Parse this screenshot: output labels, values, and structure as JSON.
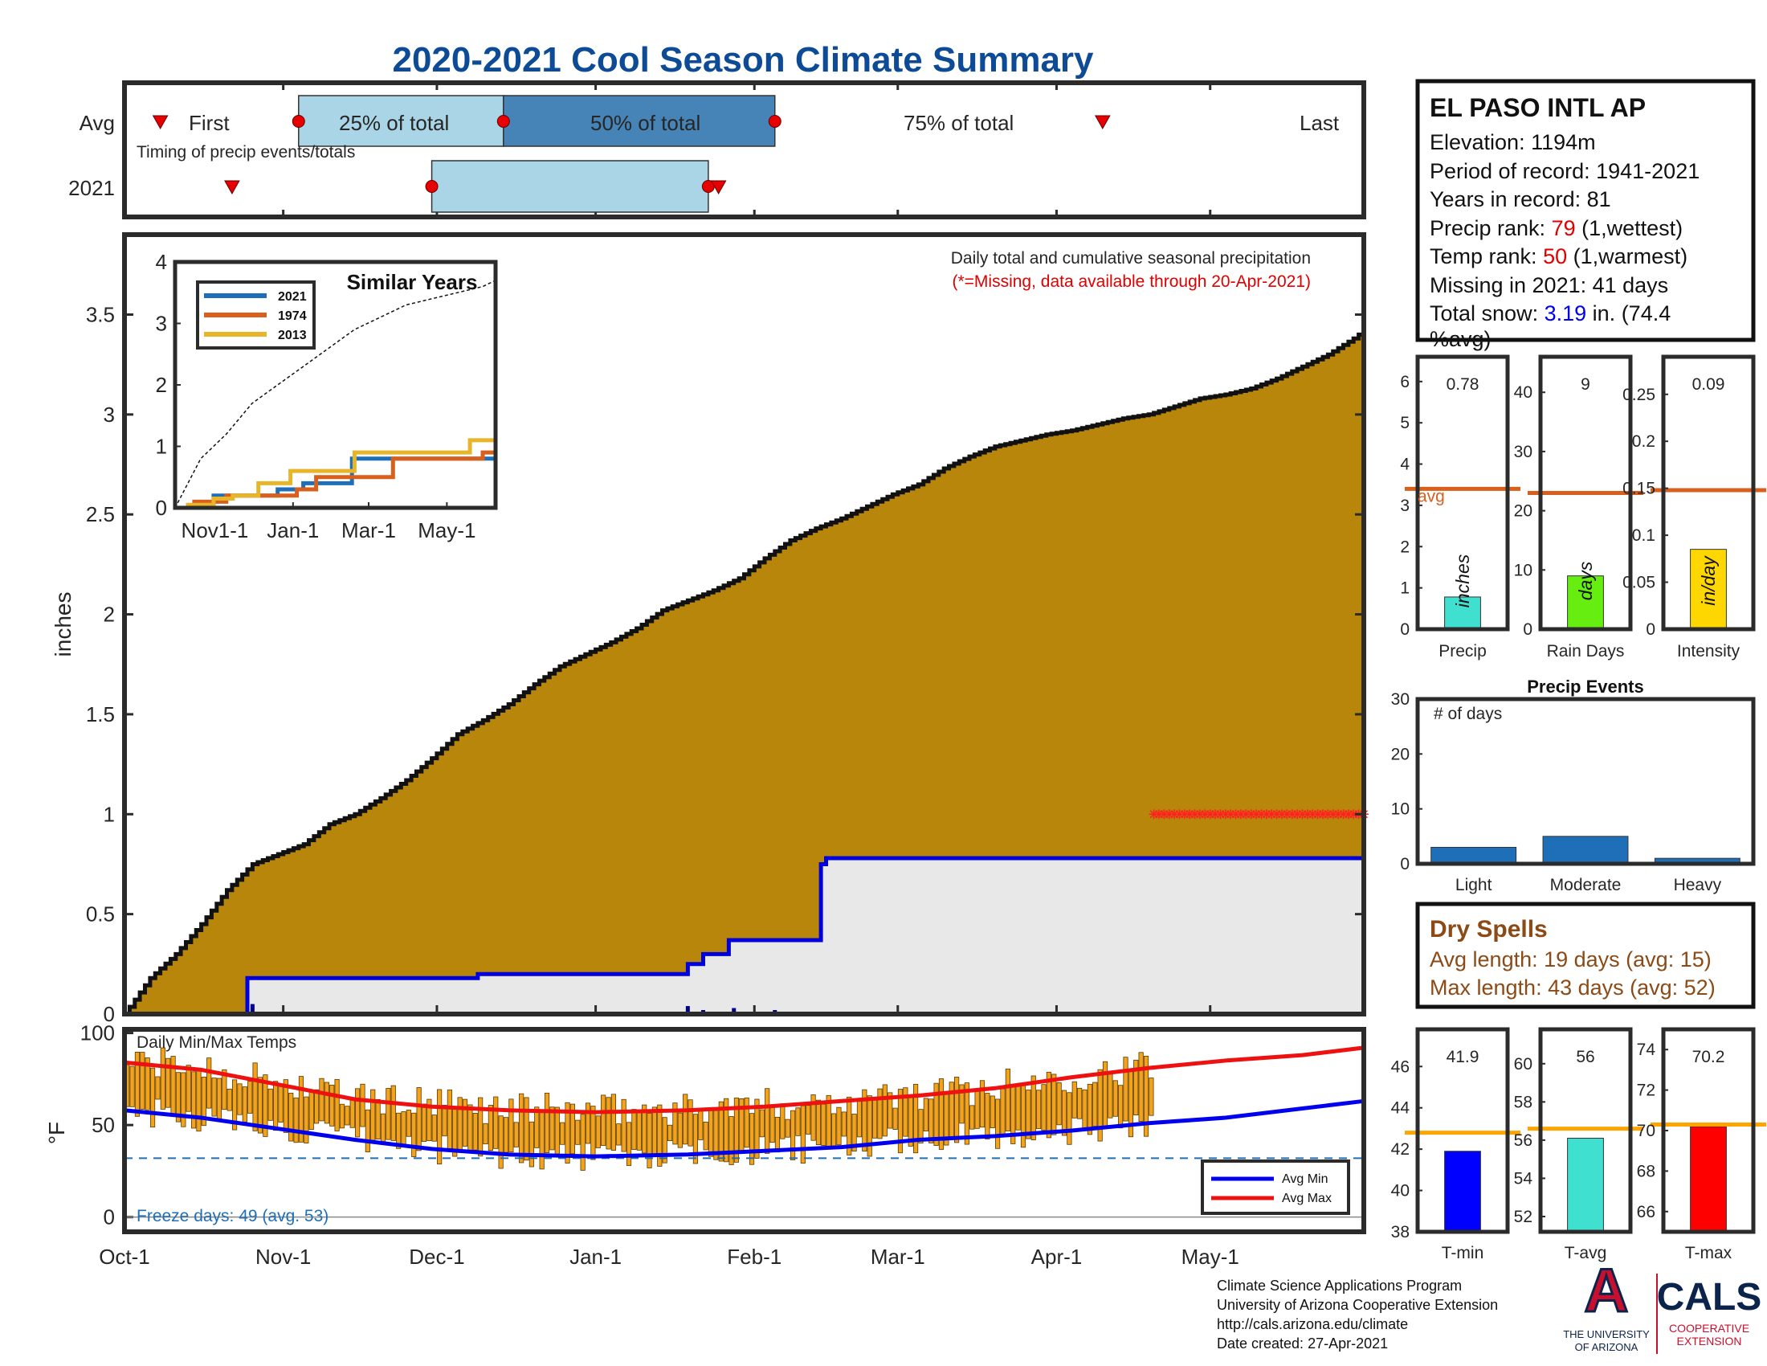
{
  "title": "2020-2021 Cool Season Climate Summary",
  "timing": {
    "row_labels": [
      "Avg",
      "2021"
    ],
    "caption": "Timing of precip events/totals",
    "avg_labels": {
      "first": "First",
      "p25": "25% of total",
      "p50": "50% of total",
      "p75": "75% of total",
      "last": "Last"
    },
    "avg_days": {
      "first": 7,
      "p25": 34,
      "p50": 74,
      "p75": 127,
      "last": 191
    },
    "y2021_days": {
      "first": 21,
      "p25": 60,
      "p75": 114,
      "last": 116
    },
    "colors": {
      "light": "#a9d5e7",
      "dark": "#4683b6",
      "marker": "#e60000"
    }
  },
  "station": {
    "name": "EL PASO INTL AP",
    "elevation": "Elevation: 1194m",
    "period": "Period of record: 1941-2021",
    "years": "Years in record: 81",
    "precip_rank_label": "Precip rank:",
    "precip_rank": "79",
    "precip_rank_note": "(1,wettest)",
    "temp_rank_label": "Temp rank:",
    "temp_rank": "50",
    "temp_rank_note": "(1,warmest)",
    "missing": "Missing in 2021: 41 days",
    "snow_label": "Total snow:",
    "snow_value": "3.19",
    "snow_note": "in. (74.4",
    "snow_note2": "%avg)"
  },
  "main_panel": {
    "note": "Daily total and cumulative seasonal precipitation",
    "missing_note": "(*=Missing, data available through 20-Apr-2021)",
    "ylabel": "inches",
    "yticks": [
      "0",
      "0.5",
      "1",
      "1.5",
      "2",
      "2.5",
      "3",
      "3.5"
    ]
  },
  "x_axis": {
    "labels": [
      "Oct-1",
      "Nov-1",
      "Dec-1",
      "Jan-1",
      "Feb-1",
      "Mar-1",
      "Apr-1",
      "May-1"
    ],
    "days": [
      0,
      31,
      61,
      92,
      123,
      151,
      182,
      212
    ]
  },
  "chart_data": [
    {
      "id": "cumulative_precip",
      "type": "area",
      "x_unit": "days since Oct-1",
      "average_cumulative": {
        "x": [
          0,
          5,
          10,
          15,
          20,
          25,
          30,
          35,
          40,
          45,
          50,
          55,
          60,
          65,
          70,
          75,
          80,
          85,
          90,
          95,
          100,
          105,
          110,
          115,
          120,
          125,
          130,
          135,
          140,
          145,
          150,
          155,
          160,
          165,
          170,
          175,
          180,
          185,
          190,
          195,
          200,
          205,
          210,
          215,
          220,
          225,
          230,
          235,
          240,
          242
        ],
        "y": [
          0,
          0.18,
          0.3,
          0.45,
          0.62,
          0.75,
          0.8,
          0.85,
          0.95,
          1.0,
          1.08,
          1.17,
          1.28,
          1.4,
          1.47,
          1.55,
          1.65,
          1.74,
          1.8,
          1.86,
          1.93,
          2.02,
          2.07,
          2.12,
          2.18,
          2.28,
          2.37,
          2.43,
          2.48,
          2.54,
          2.6,
          2.65,
          2.73,
          2.79,
          2.84,
          2.87,
          2.9,
          2.92,
          2.95,
          2.98,
          3.0,
          3.04,
          3.08,
          3.1,
          3.13,
          3.18,
          3.24,
          3.3,
          3.38,
          3.42
        ]
      },
      "cumulative_2021": {
        "x": [
          0,
          24,
          24,
          69,
          69,
          110,
          110,
          113,
          113,
          118,
          118,
          136,
          136,
          137,
          137,
          242
        ],
        "y": [
          0,
          0,
          0.18,
          0.18,
          0.2,
          0.2,
          0.25,
          0.25,
          0.3,
          0.3,
          0.37,
          0.37,
          0.75,
          0.75,
          0.78,
          0.78
        ]
      },
      "daily_2021": {
        "x": [
          25,
          69,
          110,
          113,
          119,
          127
        ],
        "y": [
          0.05,
          0.01,
          0.04,
          0.02,
          0.03,
          0.02
        ]
      },
      "missing_start_day": 201,
      "missing_end_day": 242,
      "missing_marker_y": 1.0,
      "ylim": [
        0,
        3.9
      ],
      "colors": {
        "average": "#b8860b",
        "avg_edge": "#111111",
        "season": "#e8e8e8",
        "line": "#0000dd",
        "missing": "#ff2020"
      }
    },
    {
      "id": "similar_years",
      "type": "line",
      "title": "Similar Years",
      "xticks": [
        "Nov1-1",
        "Jan-1",
        "Mar-1",
        "May-1"
      ],
      "yticks": [
        "0",
        "1",
        "2",
        "3",
        "4"
      ],
      "ylim": [
        0,
        4
      ],
      "series": [
        {
          "name": "2021",
          "color": "#1f6fb8",
          "x": [
            0,
            20,
            30,
            60,
            80,
            100,
            110,
            138,
            160,
            250
          ],
          "y": [
            0,
            0,
            0.2,
            0.2,
            0.3,
            0.4,
            0.4,
            0.8,
            0.8,
            0.8
          ]
        },
        {
          "name": "1974",
          "color": "#d95f1c",
          "x": [
            0,
            15,
            40,
            60,
            95,
            110,
            155,
            170,
            220,
            240,
            250
          ],
          "y": [
            0,
            0.1,
            0.2,
            0.2,
            0.3,
            0.5,
            0.5,
            0.8,
            0.8,
            0.9,
            0.9
          ]
        },
        {
          "name": "2013",
          "color": "#e8b52a",
          "x": [
            0,
            10,
            30,
            45,
            65,
            90,
            115,
            140,
            200,
            230,
            250
          ],
          "y": [
            0,
            0.05,
            0.15,
            0.2,
            0.4,
            0.6,
            0.6,
            0.9,
            0.9,
            1.1,
            1.1
          ]
        }
      ],
      "average": {
        "x": [
          0,
          10,
          20,
          40,
          60,
          80,
          100,
          120,
          140,
          160,
          180,
          200,
          220,
          240,
          250
        ],
        "y": [
          0,
          0.4,
          0.8,
          1.2,
          1.7,
          2.0,
          2.3,
          2.6,
          2.9,
          3.1,
          3.3,
          3.4,
          3.5,
          3.6,
          3.7
        ]
      }
    },
    {
      "id": "season_totals",
      "type": "bar",
      "panels": [
        {
          "label": "Precip",
          "value": 0.78,
          "value_label": "0.78",
          "avg": 3.4,
          "unit": "inches",
          "ylim": [
            0,
            6.6
          ],
          "yticks": [
            "0",
            "1",
            "2",
            "3",
            "4",
            "5",
            "6"
          ],
          "color": "#40e0d0",
          "avg_label": "avg"
        },
        {
          "label": "Rain Days",
          "value": 9,
          "value_label": "9",
          "avg": 23,
          "unit": "days",
          "ylim": [
            0,
            46
          ],
          "yticks": [
            "0",
            "10",
            "20",
            "30",
            "40"
          ],
          "color": "#66ee11"
        },
        {
          "label": "Intensity",
          "value": 0.085,
          "value_label": "0.09",
          "avg": 0.148,
          "unit": "in/day",
          "ylim": [
            0,
            0.29
          ],
          "yticks": [
            "0",
            "0.05",
            "0.1",
            "0.15",
            "0.2",
            "0.25"
          ],
          "color": "#ffd700"
        }
      ],
      "avg_color": "#d95f1c"
    },
    {
      "id": "precip_events",
      "type": "bar",
      "title": "Precip Events",
      "annotation": "# of days",
      "categories": [
        "Light",
        "Moderate",
        "Heavy"
      ],
      "values": [
        3,
        5,
        1
      ],
      "ylim": [
        0,
        30
      ],
      "yticks": [
        "0",
        "10",
        "20",
        "30"
      ],
      "color": "#1f6fb8"
    },
    {
      "id": "daily_temps",
      "type": "bar",
      "title": "Daily Min/Max Temps",
      "ylabel": "°F",
      "yticks": [
        "0",
        "50",
        "100"
      ],
      "ylim": [
        -8,
        102
      ],
      "freeze_line": 32,
      "data_end_day": 201,
      "avg_min": {
        "x": [
          0,
          15,
          30,
          45,
          60,
          75,
          92,
          110,
          125,
          140,
          155,
          170,
          185,
          200,
          215,
          230,
          242
        ],
        "y": [
          58,
          54,
          48,
          42,
          37,
          34,
          33,
          34,
          36,
          38,
          42,
          44,
          47,
          51,
          54,
          59,
          63
        ]
      },
      "avg_max": {
        "x": [
          0,
          15,
          30,
          45,
          60,
          75,
          92,
          110,
          125,
          140,
          155,
          170,
          185,
          200,
          215,
          230,
          242
        ],
        "y": [
          84,
          80,
          72,
          64,
          60,
          58,
          57,
          58,
          60,
          63,
          66,
          70,
          76,
          81,
          85,
          88,
          92
        ]
      },
      "legend": [
        "Avg Min",
        "Avg Max"
      ],
      "colors": {
        "bar": "#f3a21b",
        "bar_edge": "#5a3a00",
        "min": "#0000ee",
        "max": "#ee1111",
        "freeze": "#1f6fb8"
      }
    },
    {
      "id": "temp_summaries",
      "type": "bar",
      "panels": [
        {
          "label": "T-min",
          "value": 41.9,
          "value_label": "41.9",
          "avg": 42.8,
          "ylim": [
            38,
            47.8
          ],
          "yticks": [
            "38",
            "40",
            "42",
            "44",
            "46"
          ],
          "color": "#0000ff"
        },
        {
          "label": "T-avg",
          "value": 56.1,
          "value_label": "56",
          "avg": 56.6,
          "ylim": [
            51.2,
            61.8
          ],
          "yticks": [
            "52",
            "54",
            "56",
            "58",
            "60"
          ],
          "color": "#40e0d0"
        },
        {
          "label": "T-max",
          "value": 70.2,
          "value_label": "70.2",
          "avg": 70.3,
          "ylim": [
            65,
            75
          ],
          "yticks": [
            "66",
            "68",
            "70",
            "72",
            "74"
          ],
          "color": "#ff0000"
        }
      ],
      "avg_color": "#ffa500"
    }
  ],
  "freeze_text": "Freeze days: 49 (avg. 53)",
  "dry_spells": {
    "title": "Dry Spells",
    "avg": "Avg length: 19 days (avg: 15)",
    "max": "Max length: 43 days (avg: 52)",
    "color": "#8b4a16"
  },
  "credits": [
    "Climate Science Applications Program",
    "University of Arizona Cooperative Extension",
    "http://cals.arizona.edu/climate",
    " Date created: 27-Apr-2021"
  ],
  "logos": {
    "ua_mark": "A",
    "ua_text_1": "THE UNIVERSITY",
    "ua_text_2": "OF ARIZONA",
    "cals_text": "CALS",
    "cals_sub_1": "COOPERATIVE",
    "cals_sub_2": "EXTENSION",
    "ua_red": "#c8102e",
    "ua_blue": "#0c234b"
  }
}
